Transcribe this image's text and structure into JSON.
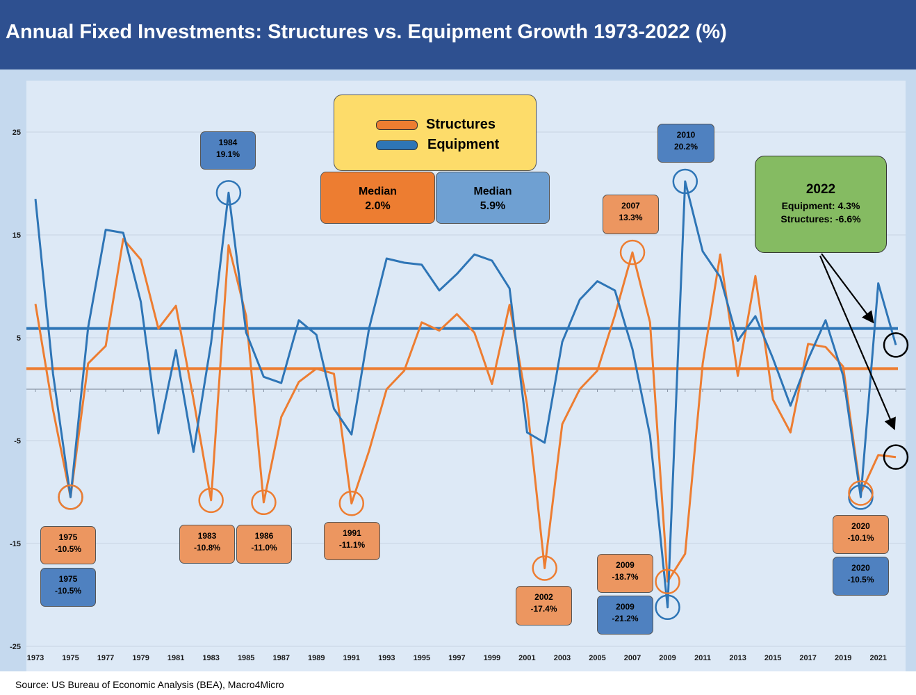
{
  "header": {
    "title": "Annual Fixed Investments: Structures vs. Equipment Growth 1973-2022 (%)"
  },
  "footer": {
    "source": "Source: US Bureau of Economic Analysis (BEA), Macro4Micro"
  },
  "legend": {
    "structures": "Structures",
    "equipment": "Equipment"
  },
  "medians": {
    "structures": {
      "label": "Median",
      "value": "2.0%"
    },
    "equipment": {
      "label": "Median",
      "value": "5.9%"
    }
  },
  "callout_2022": {
    "year": "2022",
    "equipment": "Equipment: 4.3%",
    "structures": "Structures: -6.6%"
  },
  "annotations": {
    "s1975": {
      "year": "1975",
      "value": "-10.5%"
    },
    "e1975": {
      "year": "1975",
      "value": "-10.5%"
    },
    "e1984": {
      "year": "1984",
      "value": "19.1%"
    },
    "s1983": {
      "year": "1983",
      "value": "-10.8%"
    },
    "s1986": {
      "year": "1986",
      "value": "-11.0%"
    },
    "s1991": {
      "year": "1991",
      "value": "-11.1%"
    },
    "s2002": {
      "year": "2002",
      "value": "-17.4%"
    },
    "s2007": {
      "year": "2007",
      "value": "13.3%"
    },
    "s2009": {
      "year": "2009",
      "value": "-18.7%"
    },
    "e2009": {
      "year": "2009",
      "value": "-21.2%"
    },
    "e2010": {
      "year": "2010",
      "value": "20.2%"
    },
    "s2020": {
      "year": "2020",
      "value": "-10.1%"
    },
    "e2020": {
      "year": "2020",
      "value": "-10.5%"
    }
  },
  "colors": {
    "structures": "#ed7d31",
    "equipment": "#2e75b6",
    "plot_bg": "#dde9f6",
    "frame": "#c5d9ee",
    "header": "#2e5090",
    "legend_bg": "#fddc6a",
    "callout_bg": "#85bb62",
    "median_structures_bg": "#ed7d31",
    "median_equipment_bg": "#6fa0d2"
  },
  "chart_data": {
    "type": "line",
    "title": "Annual Fixed Investments: Structures vs. Equipment Growth 1973-2022 (%)",
    "xlabel": "",
    "ylabel": "",
    "ylim": [
      -25,
      25
    ],
    "yticks": [
      25,
      15,
      5,
      -5,
      -15,
      -25
    ],
    "xtick_labels": [
      "1973",
      "1975",
      "1977",
      "1979",
      "1981",
      "1983",
      "1985",
      "1987",
      "1989",
      "1991",
      "1993",
      "1995",
      "1997",
      "1999",
      "2001",
      "2003",
      "2005",
      "2007",
      "2009",
      "2011",
      "2013",
      "2015",
      "2017",
      "2019",
      "2021"
    ],
    "x": [
      1973,
      1974,
      1975,
      1976,
      1977,
      1978,
      1979,
      1980,
      1981,
      1982,
      1983,
      1984,
      1985,
      1986,
      1987,
      1988,
      1989,
      1990,
      1991,
      1992,
      1993,
      1994,
      1995,
      1996,
      1997,
      1998,
      1999,
      2000,
      2001,
      2002,
      2003,
      2004,
      2005,
      2006,
      2007,
      2008,
      2009,
      2010,
      2011,
      2012,
      2013,
      2014,
      2015,
      2016,
      2017,
      2018,
      2019,
      2020,
      2021,
      2022
    ],
    "series": [
      {
        "name": "Structures",
        "values": [
          8.3,
          -2.0,
          -10.5,
          2.5,
          4.2,
          14.6,
          12.6,
          5.9,
          8.1,
          -1.0,
          -10.8,
          14.0,
          7.1,
          -11.0,
          -2.7,
          0.7,
          2.0,
          1.5,
          -11.1,
          -6.0,
          0.0,
          1.8,
          6.5,
          5.7,
          7.3,
          5.5,
          0.5,
          8.2,
          -1.5,
          -17.4,
          -3.4,
          0.0,
          1.8,
          7.2,
          13.3,
          6.5,
          -18.7,
          -16.0,
          2.5,
          13.1,
          1.3,
          11.0,
          -1.0,
          -4.2,
          4.4,
          4.1,
          2.2,
          -10.1,
          -6.4,
          -6.6
        ]
      },
      {
        "name": "Equipment",
        "values": [
          18.5,
          1.5,
          -10.5,
          6.0,
          15.5,
          15.2,
          8.5,
          -4.3,
          3.8,
          -6.1,
          4.5,
          19.1,
          5.5,
          1.2,
          0.6,
          6.7,
          5.3,
          -1.9,
          -4.4,
          5.9,
          12.7,
          12.3,
          12.1,
          9.6,
          11.2,
          13.1,
          12.5,
          9.8,
          -4.2,
          -5.2,
          4.6,
          8.7,
          10.5,
          9.6,
          3.9,
          -4.5,
          -21.2,
          20.2,
          13.4,
          10.9,
          4.7,
          7.1,
          3.0,
          -1.6,
          2.9,
          6.7,
          1.3,
          -10.5,
          10.3,
          4.3
        ]
      }
    ],
    "medians": [
      {
        "name": "Structures",
        "value": 2.0
      },
      {
        "name": "Equipment",
        "value": 5.9
      }
    ],
    "legend": "top-center",
    "grid": true
  }
}
